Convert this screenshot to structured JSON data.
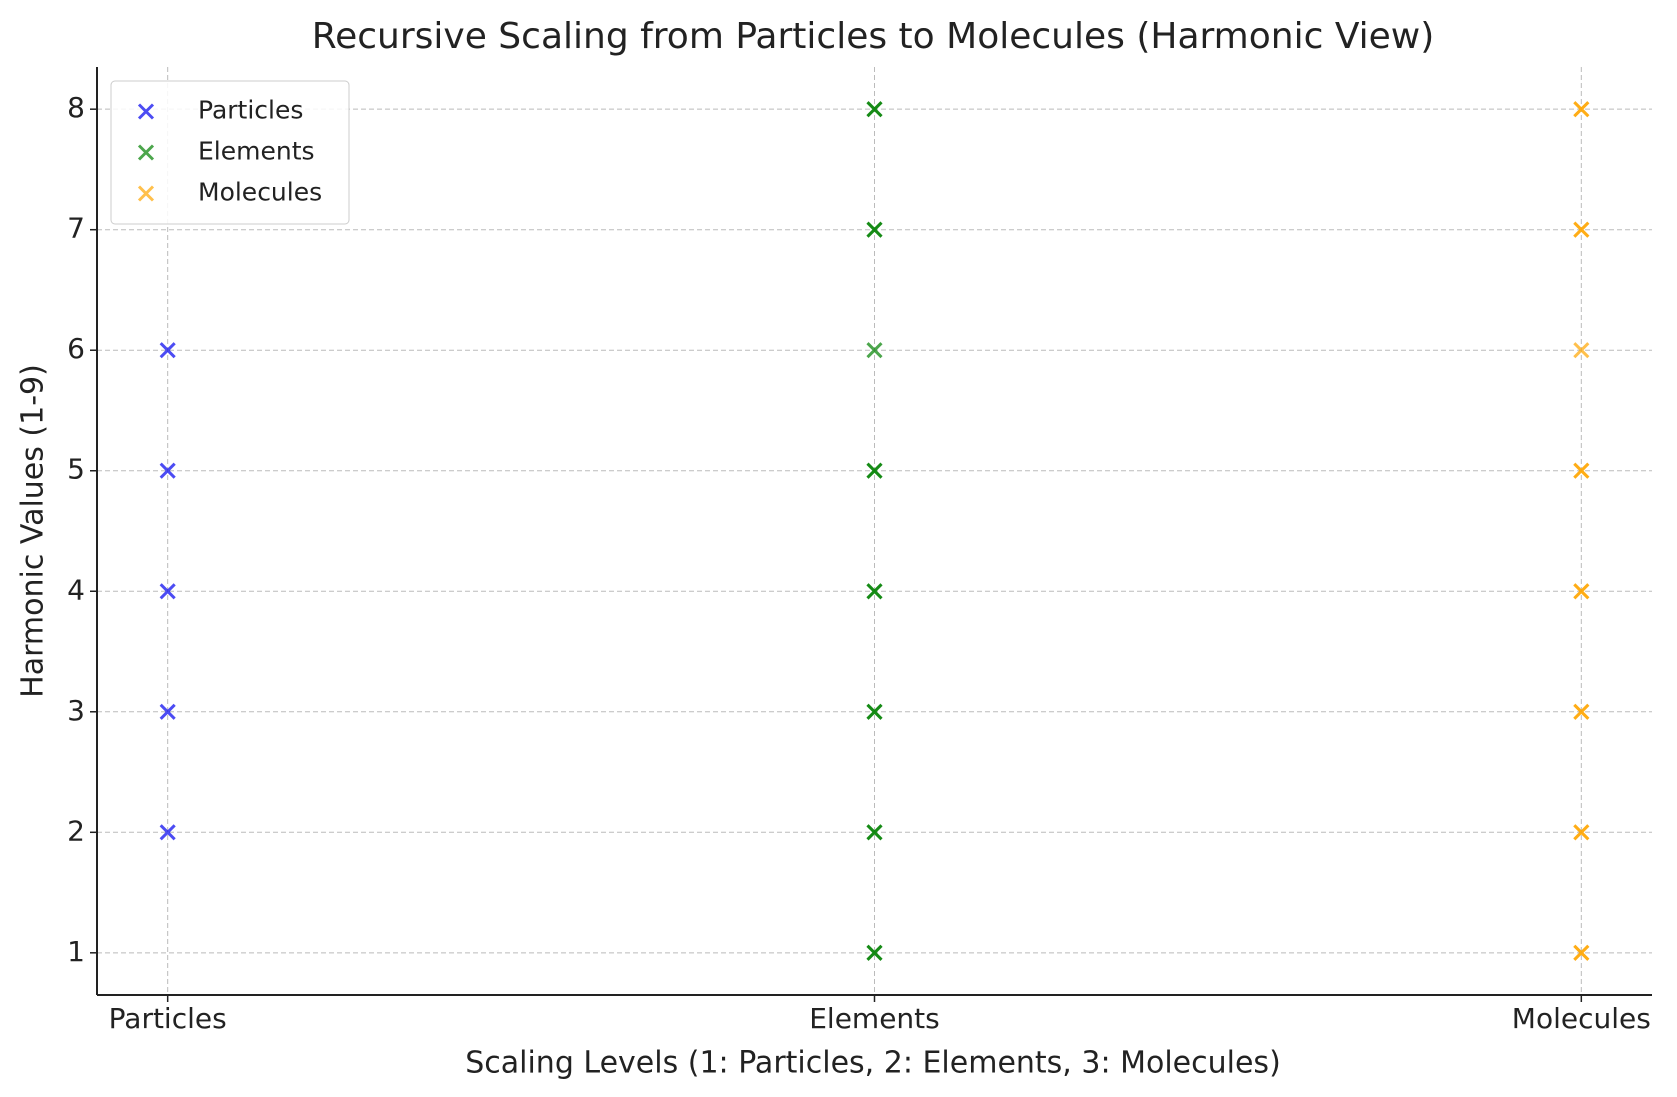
{
  "chart_data": {
    "type": "scatter",
    "title": "Recursive Scaling from Particles to Molecules (Harmonic View)",
    "x_label": "Scaling Levels (1: Particles, 2: Elements, 3: Molecules)",
    "y_label": "Harmonic Values (1-9)",
    "xlim": [
      0.9,
      3.1
    ],
    "ylim": [
      0.65,
      8.35
    ],
    "xticks": [
      {
        "value": 1,
        "label": "Particles"
      },
      {
        "value": 2,
        "label": "Elements"
      },
      {
        "value": 3,
        "label": "Molecules"
      }
    ],
    "yticks": [
      1,
      2,
      3,
      4,
      5,
      6,
      7,
      8
    ],
    "grid": true,
    "legend": "upper-left",
    "marker": "x",
    "alpha": 0.7,
    "series": [
      {
        "name": "Particles",
        "color": "#0000ee",
        "x": [
          1,
          1,
          1,
          1,
          1
        ],
        "values": [
          2,
          3,
          4,
          5,
          6
        ]
      },
      {
        "name": "Elements",
        "color": "#008000",
        "x": [
          2,
          2,
          2,
          2,
          2,
          2,
          2,
          2,
          2,
          2,
          2,
          2,
          2,
          2,
          2
        ],
        "values": [
          1,
          1,
          2,
          2,
          3,
          3,
          4,
          4,
          5,
          5,
          6,
          7,
          7,
          8,
          8
        ]
      },
      {
        "name": "Molecules",
        "color": "#ffa500",
        "x": [
          3,
          3,
          3,
          3,
          3,
          3,
          3,
          3,
          3,
          3,
          3,
          3,
          3,
          3,
          3
        ],
        "values": [
          1,
          1,
          2,
          2,
          3,
          3,
          4,
          4,
          5,
          5,
          6,
          7,
          7,
          8,
          8
        ]
      }
    ]
  }
}
